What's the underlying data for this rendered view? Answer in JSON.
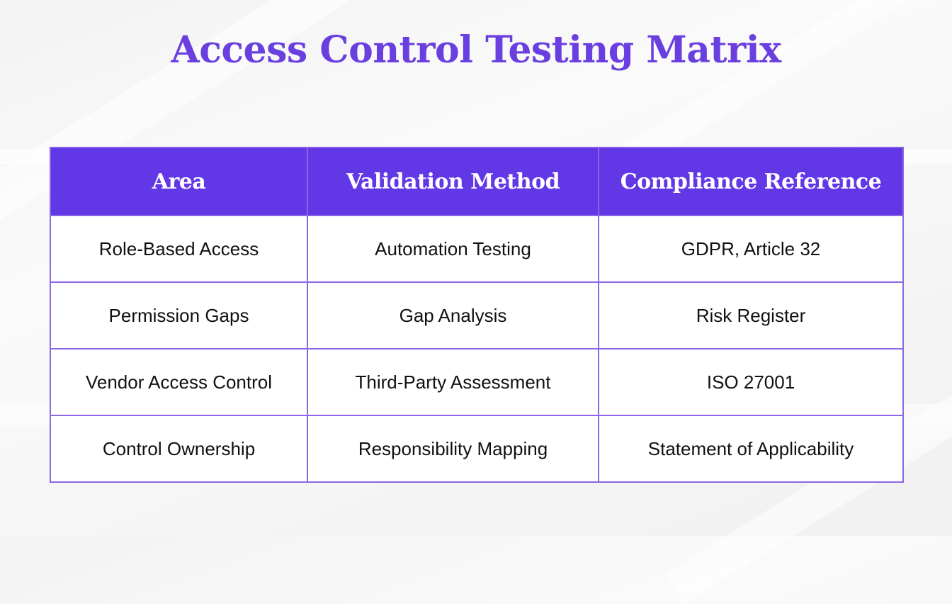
{
  "title": "Access Control Testing Matrix",
  "colors": {
    "title": "#6a3fe0",
    "header_bg": "#6238e6",
    "header_text": "#ffffff",
    "border": "#8b66e6",
    "cell_bg": "#ffffff",
    "cell_text": "#111111"
  },
  "table": {
    "headers": [
      "Area",
      "Validation Method",
      "Compliance Reference"
    ],
    "rows": [
      [
        "Role-Based Access",
        "Automation Testing",
        "GDPR, Article 32"
      ],
      [
        "Permission Gaps",
        "Gap Analysis",
        "Risk Register"
      ],
      [
        "Vendor Access Control",
        "Third-Party Assessment",
        "ISO 27001"
      ],
      [
        "Control Ownership",
        "Responsibility Mapping",
        "Statement of Applicability"
      ]
    ]
  }
}
